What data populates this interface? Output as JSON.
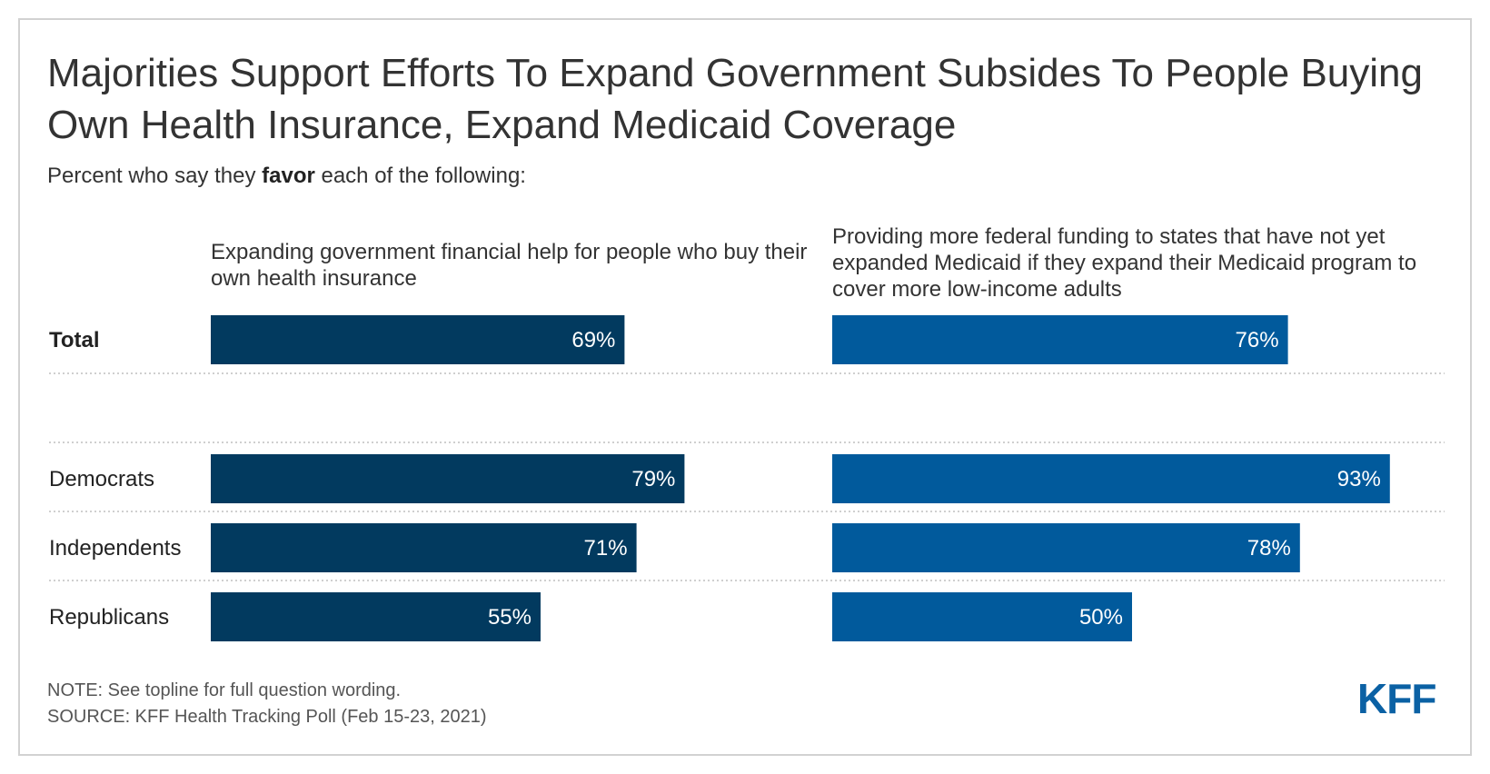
{
  "title": "Majorities Support Efforts To Expand Government Subsides To People Buying Own Health Insurance, Expand Medicaid Coverage",
  "subtitle": {
    "pre": "Percent who say they ",
    "emphasis": "favor",
    "post": " each of the following:"
  },
  "colors": {
    "series_1": "#023a5f",
    "series_2": "#015a9c",
    "logo": "#0b61a4"
  },
  "chart_data": {
    "type": "bar",
    "orientation": "horizontal",
    "title": "Majorities Support Efforts To Expand Government Subsides To People Buying Own Health Insurance, Expand Medicaid Coverage",
    "subtitle": "Percent who say they favor each of the following:",
    "categories": [
      "Total",
      "Democrats",
      "Independents",
      "Republicans"
    ],
    "category_bold": [
      true,
      false,
      false,
      false
    ],
    "series": [
      {
        "name": "Expanding government financial help for people who buy their own health insurance",
        "values": [
          69,
          79,
          71,
          55
        ],
        "labels": [
          "69%",
          "79%",
          "71%",
          "55%"
        ],
        "color": "#023a5f"
      },
      {
        "name": "Providing more federal funding to states that have not yet expanded Medicaid if they expand their Medicaid program to cover more low-income adults",
        "values": [
          76,
          93,
          78,
          50
        ],
        "labels": [
          "76%",
          "93%",
          "78%",
          "50%"
        ],
        "color": "#015a9c"
      }
    ],
    "xlim": [
      0,
      100
    ],
    "grid": false,
    "legend": "none"
  },
  "footer": {
    "note": "NOTE: See topline for full question wording.",
    "source": "SOURCE: KFF Health Tracking Poll (Feb 15-23, 2021)"
  },
  "logo": {
    "text": "KFF"
  }
}
